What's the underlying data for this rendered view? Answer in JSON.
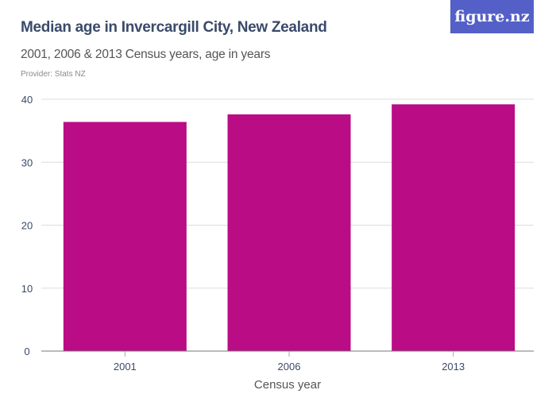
{
  "header": {
    "title": "Median age in Invercargill City, New Zealand",
    "subtitle": "2001, 2006 & 2013 Census years, age in years",
    "provider": "Provider: Stats NZ",
    "logo": "figure.nz"
  },
  "colors": {
    "bar": "#b90c85",
    "title": "#3a4a6b",
    "logo_bg": "#5460c8",
    "grid": "#dddddd"
  },
  "chart_data": {
    "type": "bar",
    "title": "Median age in Invercargill City, New Zealand",
    "subtitle": "2001, 2006 & 2013 Census years, age in years",
    "categories": [
      "2001",
      "2006",
      "2013"
    ],
    "values": [
      36.4,
      37.6,
      39.2
    ],
    "xlabel": "Census year",
    "ylabel": "",
    "ylim": [
      0,
      40
    ],
    "yticks": [
      0,
      10,
      20,
      30,
      40
    ],
    "grid": true,
    "legend": null
  }
}
